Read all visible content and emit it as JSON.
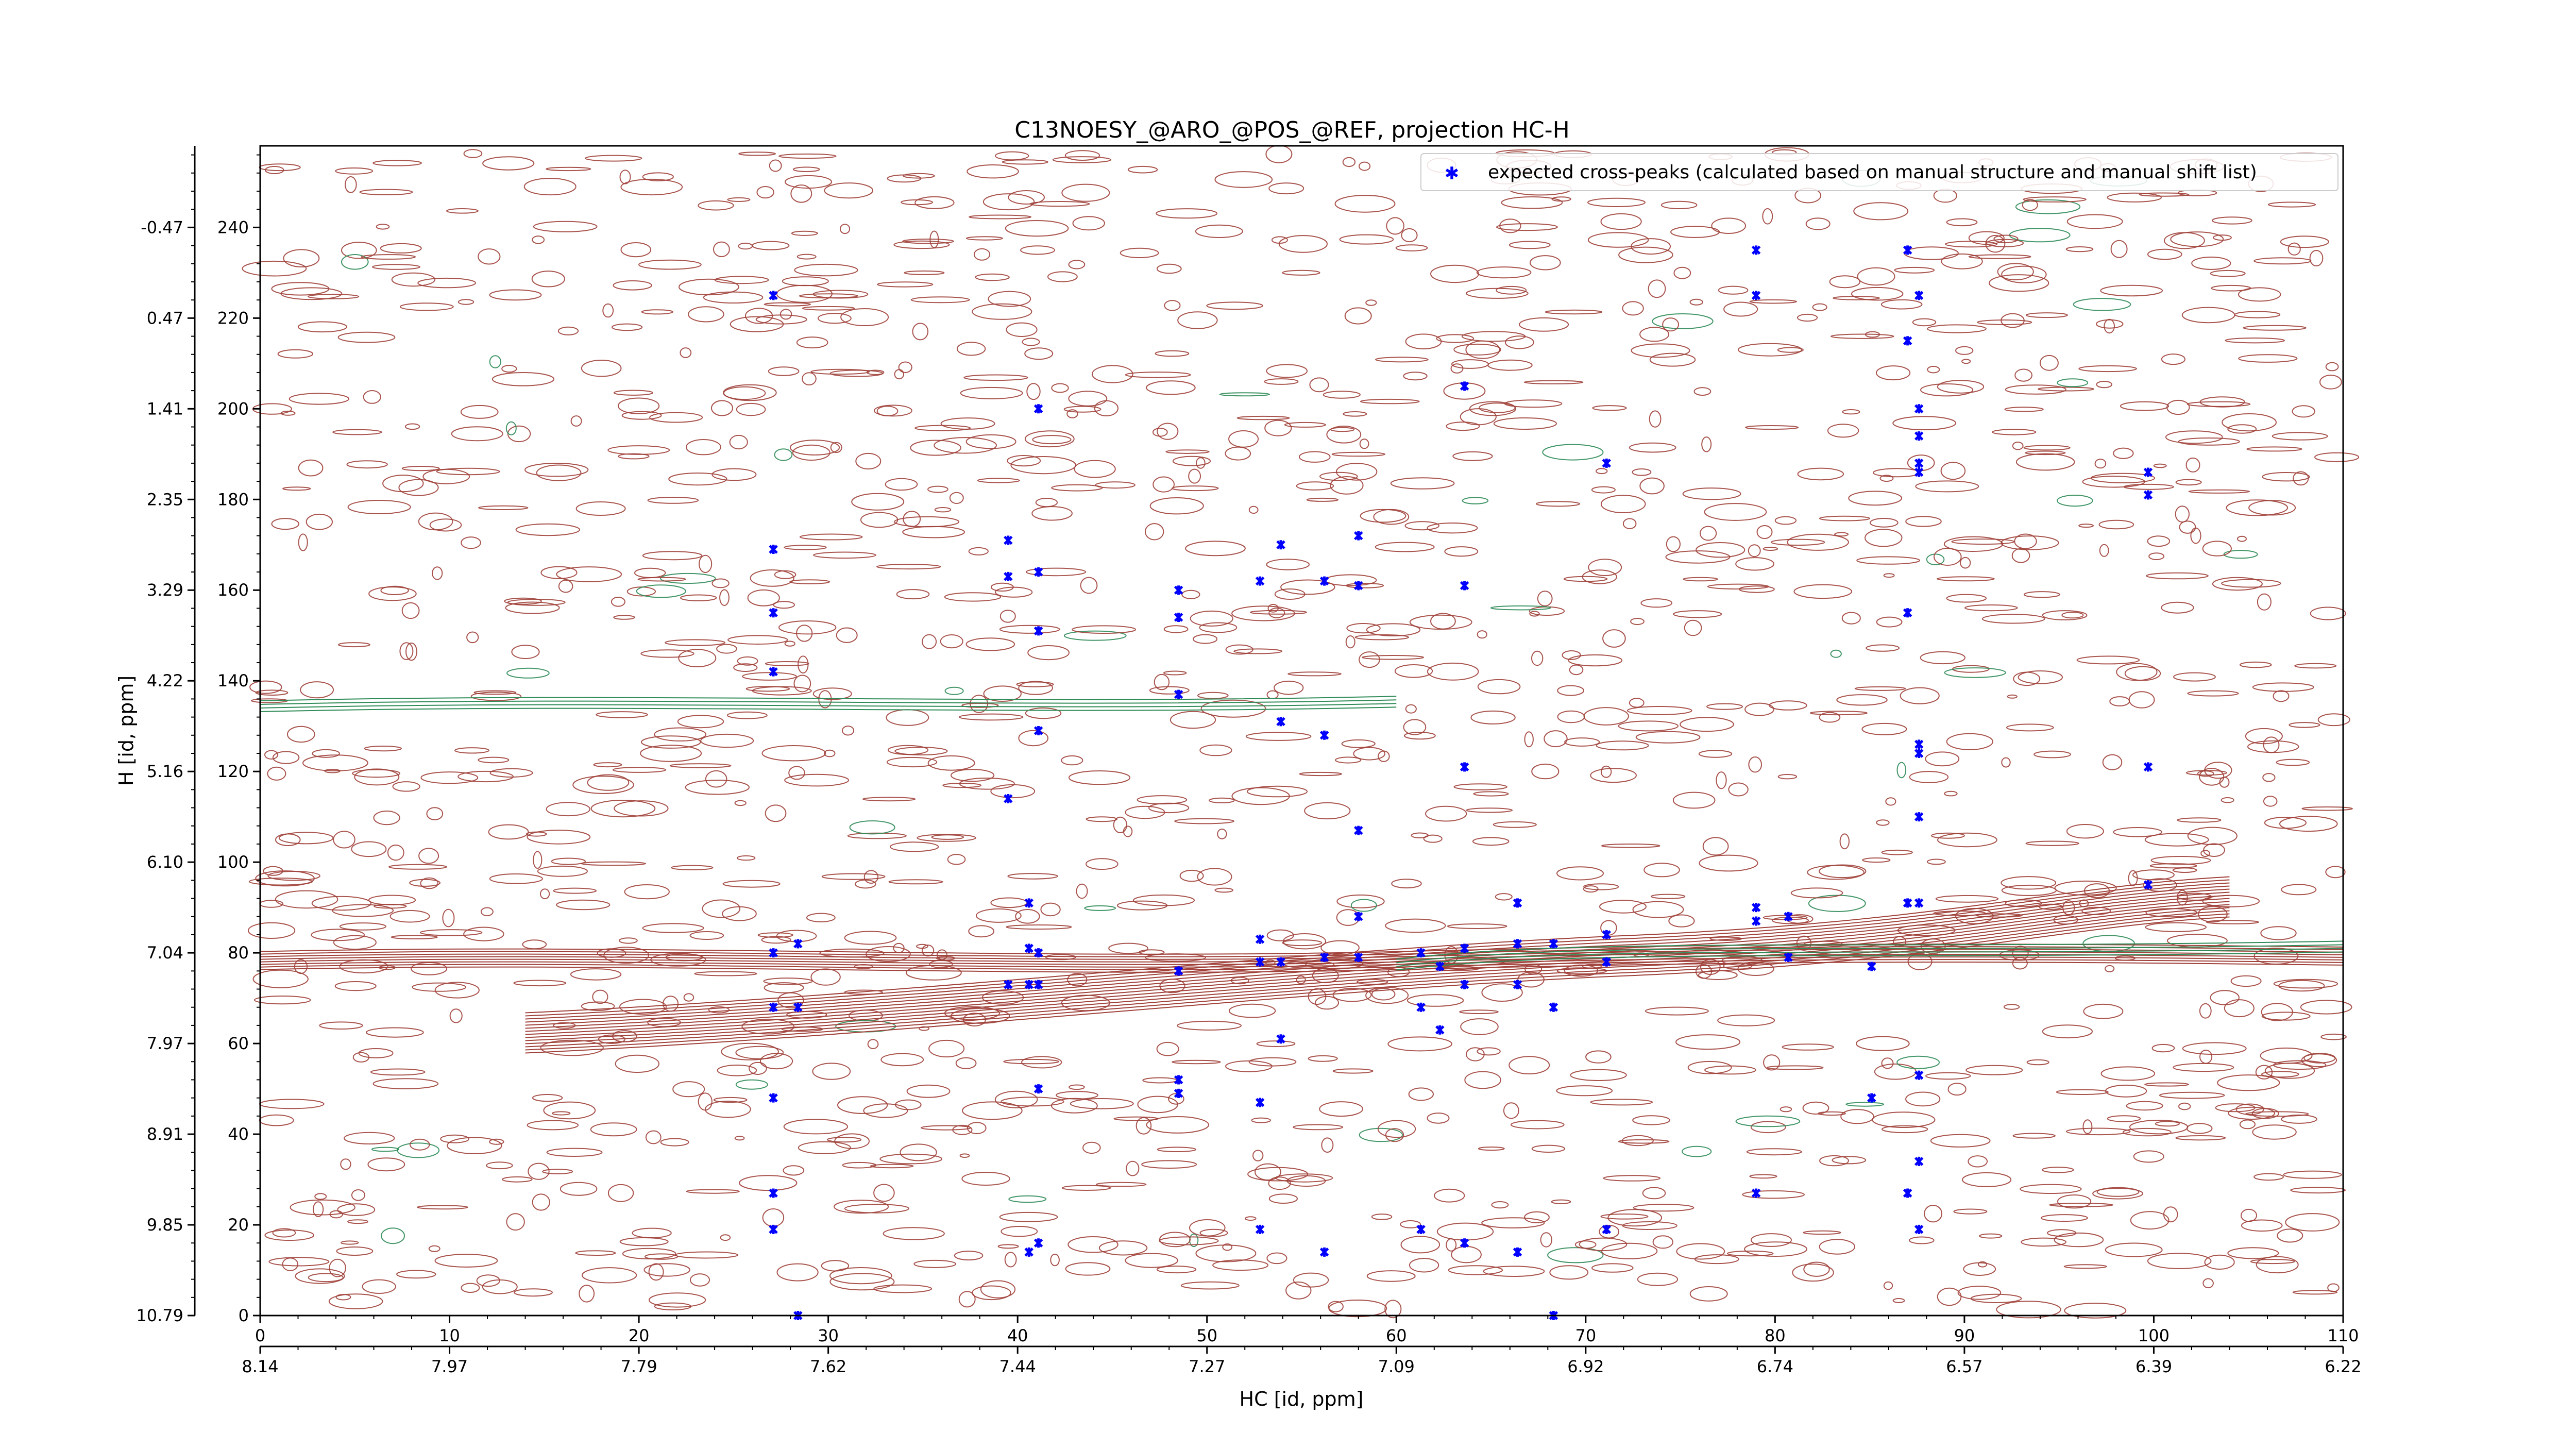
{
  "chart_data": {
    "type": "scatter",
    "title": "C13NOESY_@ARO_@POS_@REF, projection HC-H",
    "xlabel": "HC [id, ppm]",
    "ylabel": "H [id, ppm]",
    "xlim": [
      0,
      110
    ],
    "ylim": [
      0,
      258
    ],
    "x_index_ticks": [
      0,
      10,
      20,
      30,
      40,
      50,
      60,
      70,
      80,
      90,
      100,
      110
    ],
    "x_ppm_ticks": [
      "8.14",
      "7.97",
      "7.79",
      "7.62",
      "7.44",
      "7.27",
      "7.09",
      "6.92",
      "6.74",
      "6.57",
      "6.39",
      "6.22"
    ],
    "y_index_ticks": [
      0,
      20,
      40,
      60,
      80,
      100,
      120,
      140,
      160,
      180,
      200,
      220,
      240
    ],
    "y_ppm_ticks": [
      "10.79",
      "9.85",
      "8.91",
      "7.97",
      "7.04",
      "6.10",
      "5.16",
      "4.22",
      "3.29",
      "2.35",
      "1.41",
      "0.47",
      "-0.47"
    ],
    "legend": {
      "label": "expected cross-peaks (calculated based on manual structure and manual shift list)",
      "position": "top-right"
    },
    "colors": {
      "positive_contours": "#a0413a",
      "negative_contours": "#2e8b57",
      "peaks": "#0000ff"
    },
    "series": [
      {
        "name": "expected cross-peaks (calculated based on manual structure and manual shift list)",
        "points": [
          [
            27.1,
            225
          ],
          [
            27.1,
            169
          ],
          [
            27.1,
            155
          ],
          [
            27.1,
            142
          ],
          [
            27.1,
            80
          ],
          [
            27.1,
            68
          ],
          [
            27.1,
            48
          ],
          [
            27.1,
            27
          ],
          [
            27.1,
            19
          ],
          [
            28.4,
            82
          ],
          [
            28.4,
            68
          ],
          [
            28.4,
            0
          ],
          [
            39.5,
            171
          ],
          [
            39.5,
            163
          ],
          [
            39.5,
            114
          ],
          [
            39.5,
            73
          ],
          [
            40.6,
            91
          ],
          [
            40.6,
            81
          ],
          [
            40.6,
            73
          ],
          [
            40.6,
            14
          ],
          [
            41.1,
            200
          ],
          [
            41.1,
            164
          ],
          [
            41.1,
            151
          ],
          [
            41.1,
            129
          ],
          [
            41.1,
            80
          ],
          [
            41.1,
            73
          ],
          [
            41.1,
            50
          ],
          [
            41.1,
            16
          ],
          [
            48.5,
            160
          ],
          [
            48.5,
            154
          ],
          [
            48.5,
            137
          ],
          [
            48.5,
            76
          ],
          [
            48.5,
            52
          ],
          [
            48.5,
            49
          ],
          [
            52.8,
            162
          ],
          [
            52.8,
            83
          ],
          [
            52.8,
            78
          ],
          [
            52.8,
            47
          ],
          [
            52.8,
            19
          ],
          [
            53.9,
            170
          ],
          [
            53.9,
            131
          ],
          [
            53.9,
            78
          ],
          [
            53.9,
            61
          ],
          [
            56.2,
            162
          ],
          [
            56.2,
            128
          ],
          [
            56.2,
            79
          ],
          [
            56.2,
            14
          ],
          [
            58.0,
            172
          ],
          [
            58.0,
            161
          ],
          [
            58.0,
            107
          ],
          [
            58.0,
            88
          ],
          [
            58.0,
            79
          ],
          [
            61.3,
            80
          ],
          [
            61.3,
            68
          ],
          [
            61.3,
            19
          ],
          [
            62.3,
            77
          ],
          [
            62.3,
            63
          ],
          [
            63.6,
            205
          ],
          [
            63.6,
            161
          ],
          [
            63.6,
            121
          ],
          [
            63.6,
            81
          ],
          [
            63.6,
            73
          ],
          [
            63.6,
            16
          ],
          [
            66.4,
            91
          ],
          [
            66.4,
            82
          ],
          [
            66.4,
            73
          ],
          [
            66.4,
            14
          ],
          [
            68.3,
            82
          ],
          [
            68.3,
            68
          ],
          [
            68.3,
            0
          ],
          [
            71.1,
            188
          ],
          [
            71.1,
            84
          ],
          [
            71.1,
            78
          ],
          [
            71.1,
            19
          ],
          [
            79.0,
            235
          ],
          [
            79.0,
            225
          ],
          [
            79.0,
            90
          ],
          [
            79.0,
            87
          ],
          [
            79.0,
            27
          ],
          [
            80.7,
            88
          ],
          [
            80.7,
            79
          ],
          [
            85.1,
            77
          ],
          [
            85.1,
            48
          ],
          [
            87.0,
            235
          ],
          [
            87.0,
            215
          ],
          [
            87.0,
            155
          ],
          [
            87.0,
            91
          ],
          [
            87.0,
            27
          ],
          [
            87.6,
            225
          ],
          [
            87.6,
            200
          ],
          [
            87.6,
            194
          ],
          [
            87.6,
            188
          ],
          [
            87.6,
            186
          ],
          [
            87.6,
            126
          ],
          [
            87.6,
            124
          ],
          [
            87.6,
            110
          ],
          [
            87.6,
            91
          ],
          [
            87.6,
            53
          ],
          [
            87.6,
            34
          ],
          [
            87.6,
            19
          ],
          [
            99.7,
            186
          ],
          [
            99.7,
            181
          ],
          [
            99.7,
            121
          ],
          [
            99.7,
            95
          ]
        ]
      }
    ]
  }
}
